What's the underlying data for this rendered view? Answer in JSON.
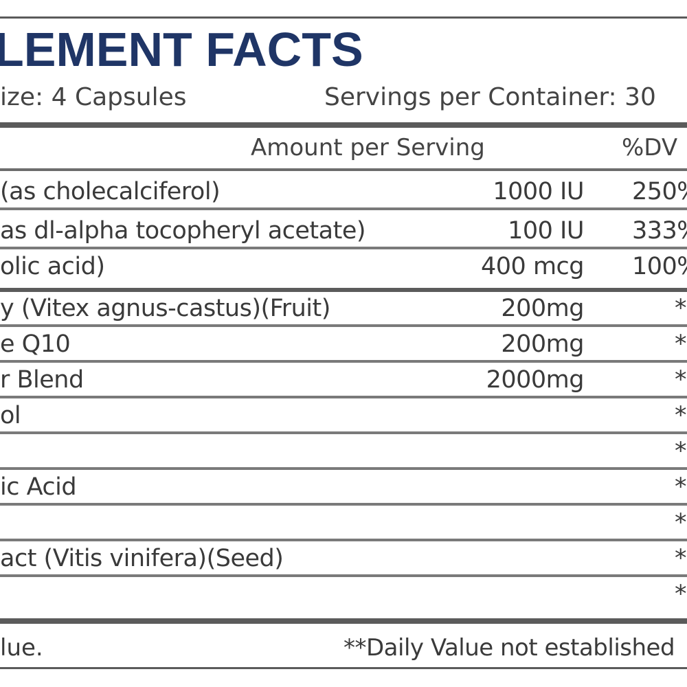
{
  "panel": {
    "title": "LEMENT FACTS",
    "serving_size": "ize: 4 Capsules",
    "servings_per_container": "Servings per Container: 30"
  },
  "table": {
    "header": {
      "amount": "Amount per Serving",
      "dv": "%DV"
    },
    "rows": [
      {
        "name": "(as cholecalciferol)",
        "amount": "1000 IU",
        "dv": "250%"
      },
      {
        "name": "as dl-alpha tocopheryl acetate)",
        "amount": "100 IU",
        "dv": "333%"
      },
      {
        "name": "olic acid)",
        "amount": "400 mcg",
        "dv": "100%"
      },
      {
        "name": "y (Vitex agnus-castus)(Fruit)",
        "amount": "200mg",
        "dv": "*"
      },
      {
        "name": "e Q10",
        "amount": "200mg",
        "dv": "*"
      },
      {
        "name": "r Blend",
        "amount": "2000mg",
        "dv": "*"
      },
      {
        "name": "ol",
        "amount": "",
        "dv": "*"
      },
      {
        "name": "",
        "amount": "",
        "dv": "*"
      },
      {
        "name": "ic Acid",
        "amount": "",
        "dv": "*"
      },
      {
        "name": "",
        "amount": "",
        "dv": "*"
      },
      {
        "name": "act (Vitis vinifera)(Seed)",
        "amount": "",
        "dv": "*"
      },
      {
        "name": "",
        "amount": "",
        "dv": "*"
      }
    ]
  },
  "footer": {
    "left": "lue.",
    "right": "**Daily Value not established"
  }
}
